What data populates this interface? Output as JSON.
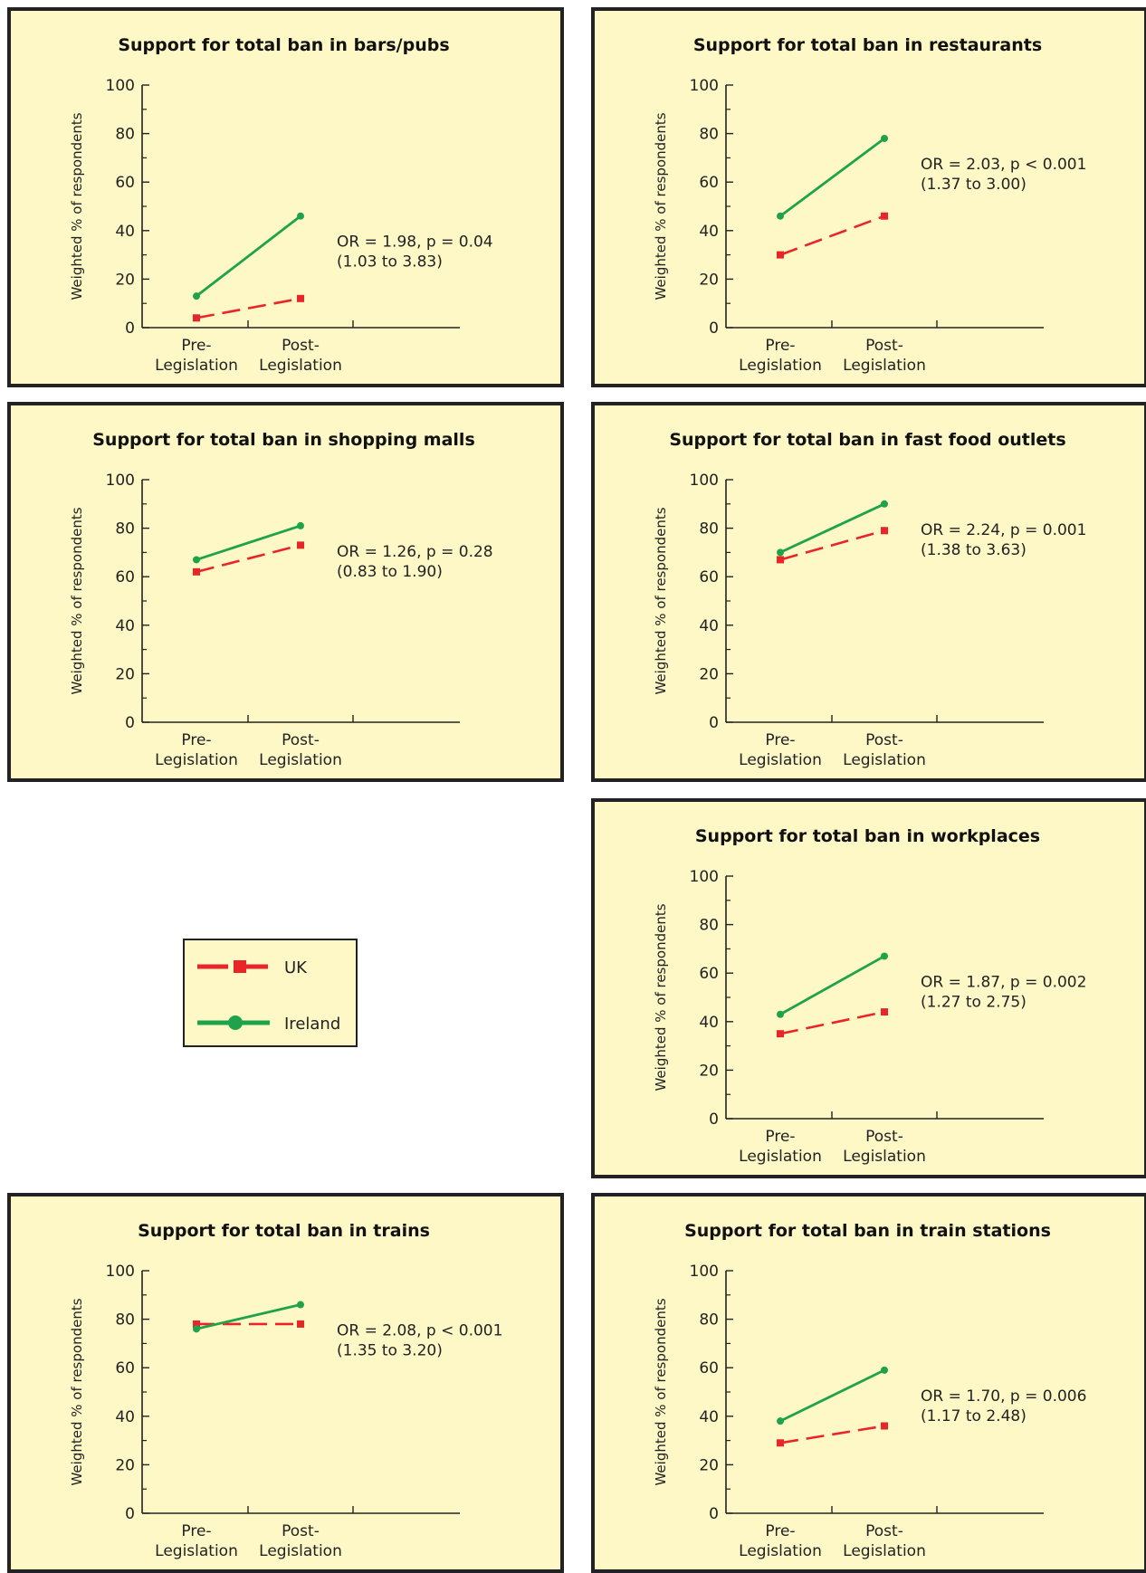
{
  "legend": {
    "uk_label": "UK",
    "ireland_label": "Ireland"
  },
  "colors": {
    "uk": "#e8262a",
    "ireland": "#1fa34a",
    "panel_bg": "#fdf8c6",
    "border": "#222222"
  },
  "chart_data": [
    {
      "type": "line",
      "title": "Support for total ban in bars/pubs",
      "ylabel": "Weighted % of respondents",
      "categories": [
        "Pre-\nLegislation",
        "Post-\nLegislation"
      ],
      "ylim": [
        0,
        100
      ],
      "yticks": [
        0,
        20,
        40,
        60,
        80,
        100
      ],
      "series": [
        {
          "name": "UK",
          "values": [
            4,
            12
          ]
        },
        {
          "name": "Ireland",
          "values": [
            13,
            46
          ]
        }
      ],
      "annotation": [
        "OR = 1.98, p = 0.04",
        "(1.03 to 3.83)"
      ]
    },
    {
      "type": "line",
      "title": "Support for total ban in restaurants",
      "ylabel": "Weighted % of respondents",
      "categories": [
        "Pre-\nLegislation",
        "Post-\nLegislation"
      ],
      "ylim": [
        0,
        100
      ],
      "yticks": [
        0,
        20,
        40,
        60,
        80,
        100
      ],
      "series": [
        {
          "name": "UK",
          "values": [
            30,
            46
          ]
        },
        {
          "name": "Ireland",
          "values": [
            46,
            78
          ]
        }
      ],
      "annotation": [
        "OR = 2.03, p < 0.001",
        "(1.37 to 3.00)"
      ]
    },
    {
      "type": "line",
      "title": "Support for total ban in shopping malls",
      "ylabel": "Weighted % of respondents",
      "categories": [
        "Pre-\nLegislation",
        "Post-\nLegislation"
      ],
      "ylim": [
        0,
        100
      ],
      "yticks": [
        0,
        20,
        40,
        60,
        80,
        100
      ],
      "series": [
        {
          "name": "UK",
          "values": [
            62,
            73
          ]
        },
        {
          "name": "Ireland",
          "values": [
            67,
            81
          ]
        }
      ],
      "annotation": [
        "OR = 1.26, p = 0.28",
        "(0.83 to 1.90)"
      ]
    },
    {
      "type": "line",
      "title": "Support for total ban in fast food outlets",
      "ylabel": "Weighted % of respondents",
      "categories": [
        "Pre-\nLegislation",
        "Post-\nLegislation"
      ],
      "ylim": [
        0,
        100
      ],
      "yticks": [
        0,
        20,
        40,
        60,
        80,
        100
      ],
      "series": [
        {
          "name": "UK",
          "values": [
            67,
            79
          ]
        },
        {
          "name": "Ireland",
          "values": [
            70,
            90
          ]
        }
      ],
      "annotation": [
        "OR = 2.24, p = 0.001",
        "(1.38 to 3.63)"
      ]
    },
    {
      "type": "line",
      "title": "Support for total ban in workplaces",
      "ylabel": "Weighted % of respondents",
      "categories": [
        "Pre-\nLegislation",
        "Post-\nLegislation"
      ],
      "ylim": [
        0,
        100
      ],
      "yticks": [
        0,
        20,
        40,
        60,
        80,
        100
      ],
      "series": [
        {
          "name": "UK",
          "values": [
            35,
            44
          ]
        },
        {
          "name": "Ireland",
          "values": [
            43,
            67
          ]
        }
      ],
      "annotation": [
        "OR = 1.87, p = 0.002",
        "(1.27 to 2.75)"
      ]
    },
    {
      "type": "line",
      "title": "Support for total ban in trains",
      "ylabel": "Weighted % of respondents",
      "categories": [
        "Pre-\nLegislation",
        "Post-\nLegislation"
      ],
      "ylim": [
        0,
        100
      ],
      "yticks": [
        0,
        20,
        40,
        60,
        80,
        100
      ],
      "series": [
        {
          "name": "UK",
          "values": [
            78,
            78
          ]
        },
        {
          "name": "Ireland",
          "values": [
            76,
            86
          ]
        }
      ],
      "annotation": [
        "OR = 2.08, p < 0.001",
        "(1.35 to 3.20)"
      ]
    },
    {
      "type": "line",
      "title": "Support for total ban in train stations",
      "ylabel": "Weighted % of respondents",
      "categories": [
        "Pre-\nLegislation",
        "Post-\nLegislation"
      ],
      "ylim": [
        0,
        100
      ],
      "yticks": [
        0,
        20,
        40,
        60,
        80,
        100
      ],
      "series": [
        {
          "name": "UK",
          "values": [
            29,
            36
          ]
        },
        {
          "name": "Ireland",
          "values": [
            38,
            59
          ]
        }
      ],
      "annotation": [
        "OR = 1.70, p = 0.006",
        "(1.17 to 2.48)"
      ]
    }
  ]
}
